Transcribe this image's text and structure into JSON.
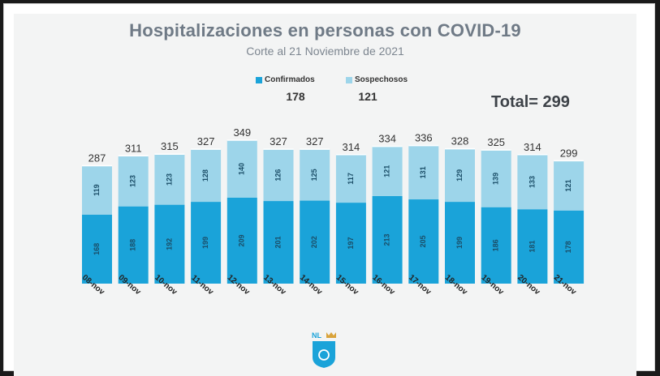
{
  "title": "Hospitalizaciones en personas con COVID-19",
  "subtitle": "Corte al 21 Noviembre de 2021",
  "legend": {
    "confirmados_label": "Confirmados",
    "sospechosos_label": "Sospechosos",
    "confirmados_total": "178",
    "sospechosos_total": "121"
  },
  "total_text": "Total= 299",
  "logo_text": "NL",
  "colors": {
    "confirmados": "#1aa3d9",
    "sospechosos": "#9dd5ea",
    "panel": "#f3f4f4",
    "title": "#6f7a86"
  },
  "chart_data": {
    "type": "bar",
    "stacked": true,
    "categories": [
      "08-nov",
      "09-nov",
      "10-nov",
      "11-nov",
      "12-nov",
      "13-nov",
      "14-nov",
      "15-nov",
      "16-nov",
      "17-nov",
      "18-nov",
      "19-nov",
      "20-nov",
      "21-nov"
    ],
    "series": [
      {
        "name": "Confirmados",
        "values": [
          168,
          188,
          192,
          199,
          209,
          201,
          202,
          197,
          213,
          205,
          199,
          186,
          181,
          178
        ]
      },
      {
        "name": "Sospechosos",
        "values": [
          119,
          123,
          123,
          128,
          140,
          126,
          125,
          117,
          121,
          131,
          129,
          139,
          133,
          121
        ]
      }
    ],
    "totals": [
      287,
      311,
      315,
      327,
      349,
      327,
      327,
      314,
      334,
      336,
      328,
      325,
      314,
      299
    ],
    "title": "Hospitalizaciones en personas con COVID-19",
    "xlabel": "",
    "ylabel": "",
    "ylim": [
      0,
      349
    ],
    "grid": false,
    "legend_position": "top-center"
  }
}
